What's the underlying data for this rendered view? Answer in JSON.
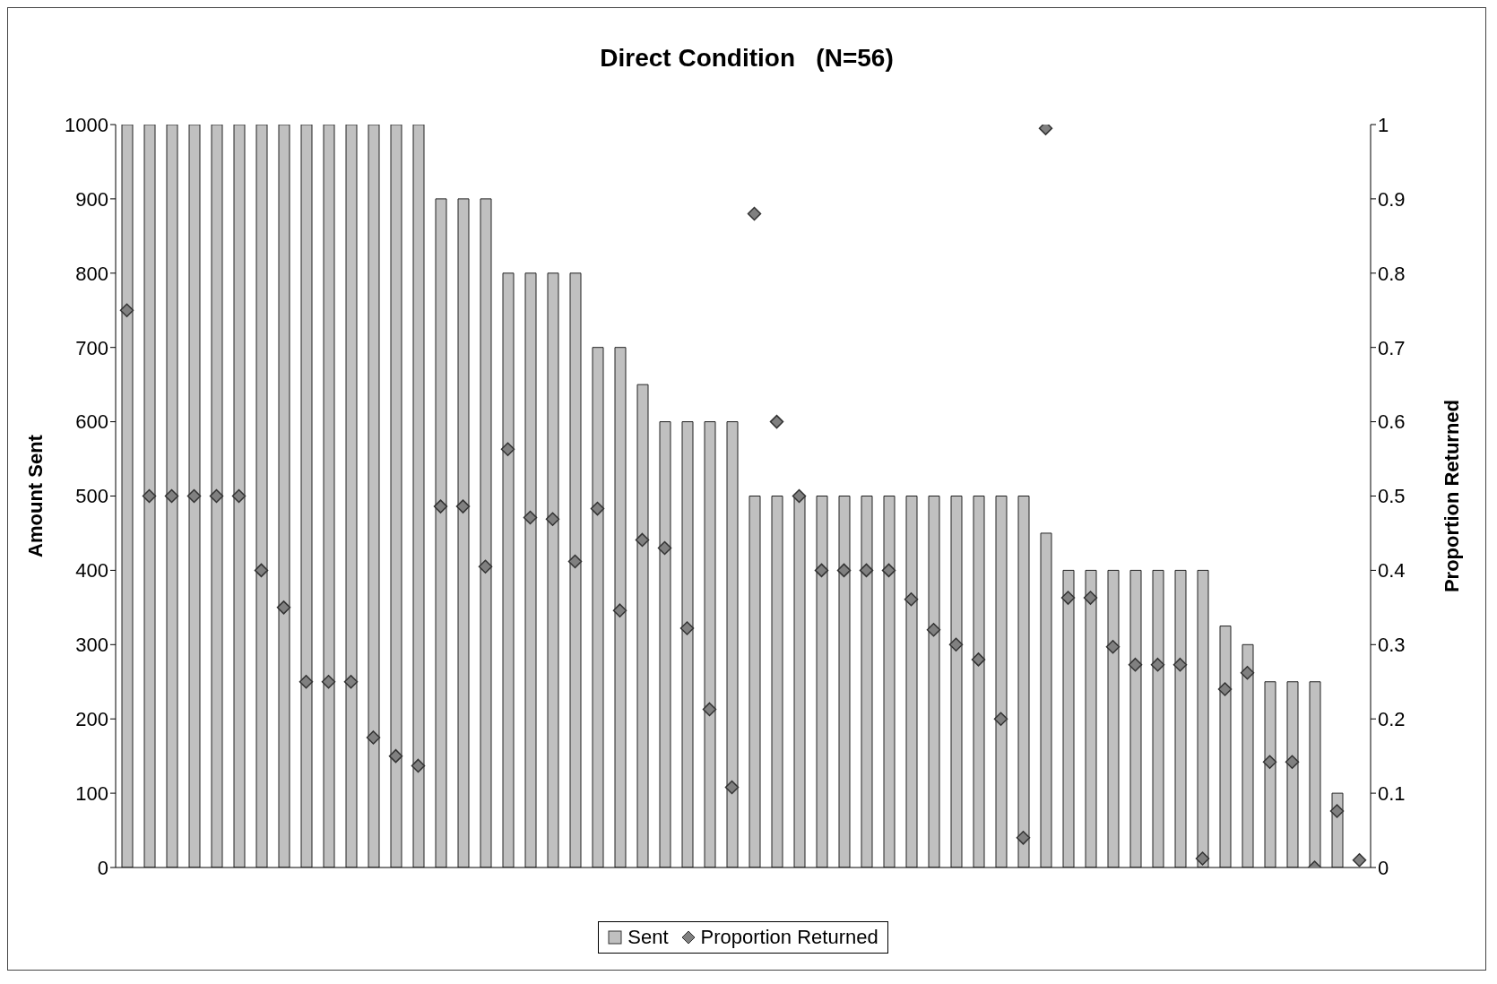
{
  "chart_data": {
    "type": "bar",
    "title": "Direct Condition   (N=56)",
    "ylabel": "Amount Sent",
    "y2label": "Proportion Returned",
    "categories": [
      null,
      null,
      null,
      null,
      null,
      null,
      null,
      null,
      null,
      null,
      null,
      null,
      null,
      null,
      null,
      null,
      null,
      null,
      null,
      null,
      null,
      null,
      null,
      null,
      null,
      null,
      null,
      null,
      null,
      null,
      null,
      null,
      null,
      null,
      null,
      null,
      null,
      null,
      null,
      null,
      null,
      null,
      null,
      null,
      null,
      null,
      null,
      null,
      null,
      null,
      null,
      null,
      null,
      null,
      null,
      null
    ],
    "series": [
      {
        "name": "Sent",
        "color": "#c0c0c0",
        "values": [
          1000,
          1000,
          1000,
          1000,
          1000,
          1000,
          1000,
          1000,
          1000,
          1000,
          1000,
          1000,
          1000,
          1000,
          900,
          900,
          900,
          800,
          800,
          800,
          800,
          700,
          700,
          650,
          600,
          600,
          600,
          600,
          500,
          500,
          500,
          500,
          500,
          500,
          500,
          500,
          500,
          500,
          500,
          500,
          500,
          450,
          400,
          400,
          400,
          400,
          400,
          400,
          400,
          325,
          300,
          250,
          250,
          250,
          100,
          0
        ]
      },
      {
        "name": "Proportion Returned",
        "type": "scatter",
        "axis": "y2",
        "color": "#808080",
        "marker": "diamond",
        "values": [
          0.75,
          0.5,
          0.5,
          0.5,
          0.5,
          0.5,
          0.4,
          0.35,
          0.25,
          0.25,
          0.25,
          0.175,
          0.15,
          0.137,
          0.486,
          0.486,
          0.405,
          0.563,
          0.471,
          0.469,
          0.412,
          0.483,
          0.346,
          0.441,
          0.43,
          0.322,
          0.213,
          0.108,
          0.88,
          0.6,
          0.5,
          0.4,
          0.4,
          0.4,
          0.4,
          0.361,
          0.32,
          0.3,
          0.28,
          0.2,
          0.04,
          0.995,
          0.363,
          0.363,
          0.297,
          0.273,
          0.273,
          0.273,
          0.012,
          0.24,
          0.262,
          0.142,
          0.142,
          0,
          0.076,
          0.01
        ]
      }
    ],
    "ylim": [
      0,
      1000
    ],
    "yticks": [
      0,
      100,
      200,
      300,
      400,
      500,
      600,
      700,
      800,
      900,
      1000
    ],
    "y2lim": [
      0,
      1
    ],
    "y2ticks": [
      0,
      0.1,
      0.2,
      0.3,
      0.4,
      0.5,
      0.6,
      0.7,
      0.8,
      0.9,
      1
    ],
    "grid": false,
    "legend": "bottom"
  }
}
